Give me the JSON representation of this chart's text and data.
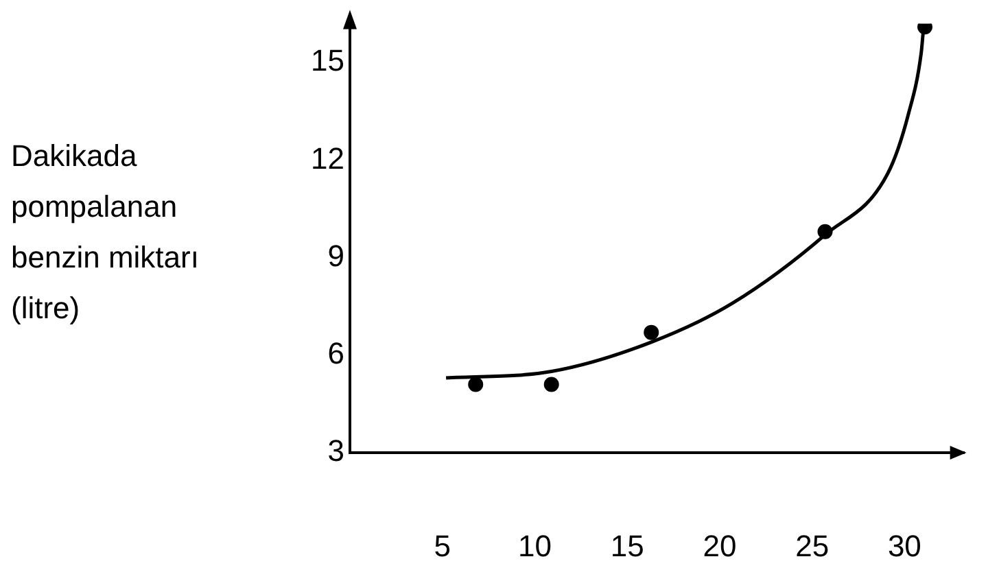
{
  "chart_data": {
    "type": "scatter",
    "ylabel": "Dakikada pompalanan benzin miktarı (litre)",
    "marker": "circle",
    "series": [
      {
        "type": "scatter",
        "color": "#000000",
        "x": [
          6.8,
          10.9,
          16.3,
          25.7,
          31.1
        ],
        "values": [
          5.1,
          5.1,
          6.7,
          9.8,
          16.1
        ]
      },
      {
        "type": "line",
        "color": "#000000",
        "marker": "none",
        "x": [
          5.2,
          10.9,
          16.3,
          20.7,
          25.7,
          29.1,
          30.2,
          30.9,
          31.0
        ],
        "values": [
          5.3,
          5.5,
          6.4,
          7.6,
          9.7,
          11.6,
          13.4,
          15.3,
          15.9
        ]
      }
    ],
    "xlim": [
      0,
      33.2
    ],
    "xticks": [
      5,
      10,
      15,
      20,
      25,
      30
    ],
    "ylim": [
      3,
      16.2
    ],
    "yticks": [
      3,
      6,
      9,
      12,
      15
    ]
  }
}
